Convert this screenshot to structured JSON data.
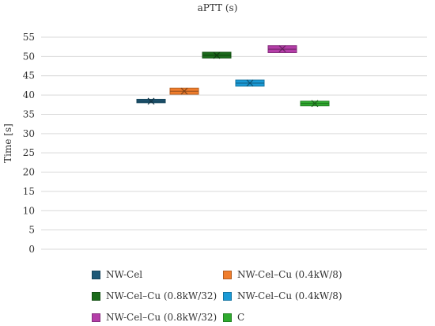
{
  "chart_data": {
    "type": "box",
    "title": "aPTT (s)",
    "xlabel": "",
    "ylabel": "Time [s]",
    "ylim": [
      0,
      55
    ],
    "yticks": [
      0,
      5,
      10,
      15,
      20,
      25,
      30,
      35,
      40,
      45,
      50,
      55
    ],
    "grid": true,
    "legend_position": "bottom",
    "series": [
      {
        "name": "NW-Cel",
        "color": "#1f5a78",
        "q1": 38.0,
        "median": 38.4,
        "q3": 38.9,
        "mean": 38.4
      },
      {
        "name": "NW-Cel–Cu (0.4kW/8)",
        "color": "#f07d2c",
        "q1": 40.2,
        "median": 41.0,
        "q3": 41.8,
        "mean": 41.0
      },
      {
        "name": "NW-Cel–Cu (0.8kW/32)",
        "color": "#1a6b1a",
        "q1": 49.6,
        "median": 50.3,
        "q3": 51.1,
        "mean": 50.3
      },
      {
        "name": "NW-Cel–Cu (0.4kW/8)",
        "color": "#1a9ad6",
        "q1": 42.3,
        "median": 43.1,
        "q3": 43.9,
        "mean": 43.1
      },
      {
        "name": "NW-Cel–Cu (0.8kW/32)",
        "color": "#b43ea8",
        "q1": 51.0,
        "median": 51.9,
        "q3": 52.8,
        "mean": 52.0
      },
      {
        "name": "C",
        "color": "#2eaa2e",
        "q1": 37.2,
        "median": 37.8,
        "q3": 38.4,
        "mean": 37.8
      }
    ]
  }
}
